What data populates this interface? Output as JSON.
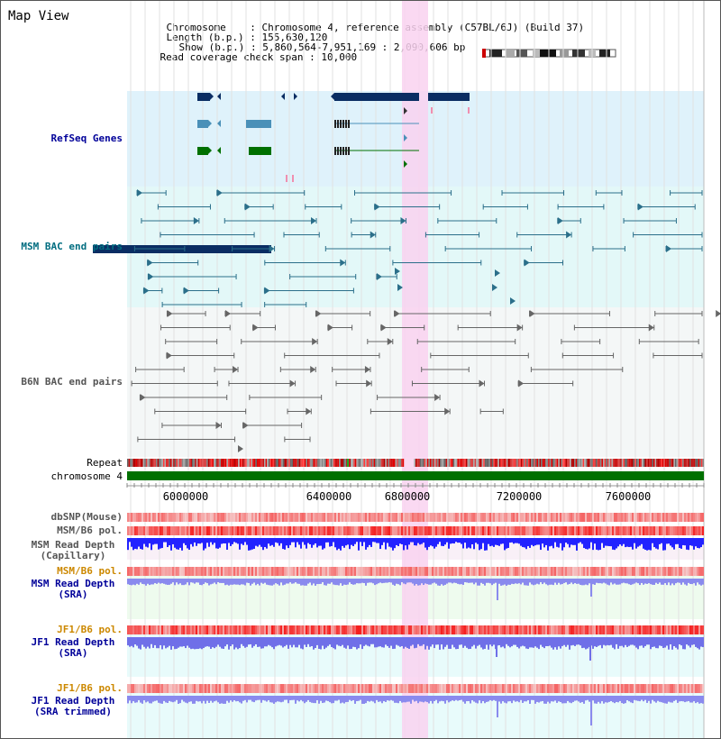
{
  "header": {
    "title": "Map View",
    "chromosome_label": "Chromosome",
    "chromosome_value": "Chromosome 4, reference assembly (C57BL/6J) (Build 37)",
    "length_label": "Length (b.p.)",
    "length_value": "155,630,120",
    "show_label": "Show (b.p.)",
    "show_value": "5,860,564-7,951,169 : 2,090,606 bp",
    "coverage_label": "Read coverage check span",
    "coverage_value": "10,000"
  },
  "tracks": {
    "refseq": "RefSeq Genes",
    "msm_bac": "MSM BAC end pairs",
    "b6n_bac": "B6N BAC end pairs",
    "repeat": "Repeat",
    "chromosome": "chromosome 4",
    "dbsnp": "dbSNP(Mouse)",
    "msm_b6_pol": "MSM/B6 pol.",
    "msm_read_depth_cap_1": "MSM Read Depth",
    "msm_read_depth_cap_2": "(Capillary)",
    "msm_b6_pol_2": "MSM/B6 pol.",
    "msm_read_depth_sra_1": "MSM Read Depth",
    "msm_read_depth_sra_2": "(SRA)",
    "jf1_b6_pol": "JF1/B6 pol.",
    "jf1_read_depth_sra_1": "JF1 Read Depth",
    "jf1_read_depth_sra_2": "(SRA)",
    "jf1_b6_pol_2": "JF1/B6 pol.",
    "jf1_read_depth_trim_1": "JF1 Read Depth",
    "jf1_read_depth_trim_2": "(SRA trimmed)"
  },
  "axis": {
    "ticks": [
      "6000000",
      "6400000",
      "6800000",
      "7200000",
      "7600000"
    ]
  },
  "colors": {
    "highlight": "#f9d2f0",
    "refseq_bg": "#dff2fb",
    "msm_bg": "#e3f8f8",
    "b6n_bg": "#f4f7f7",
    "gene_dark": "#0a2d63",
    "gene_mid": "#4a90b8",
    "gene_green": "#007000",
    "msm_bac": "#2b6f8a",
    "b6n_bac": "#666666",
    "label_blue": "#000099",
    "label_orange": "#cc8800",
    "label_teal": "#006d80"
  }
}
